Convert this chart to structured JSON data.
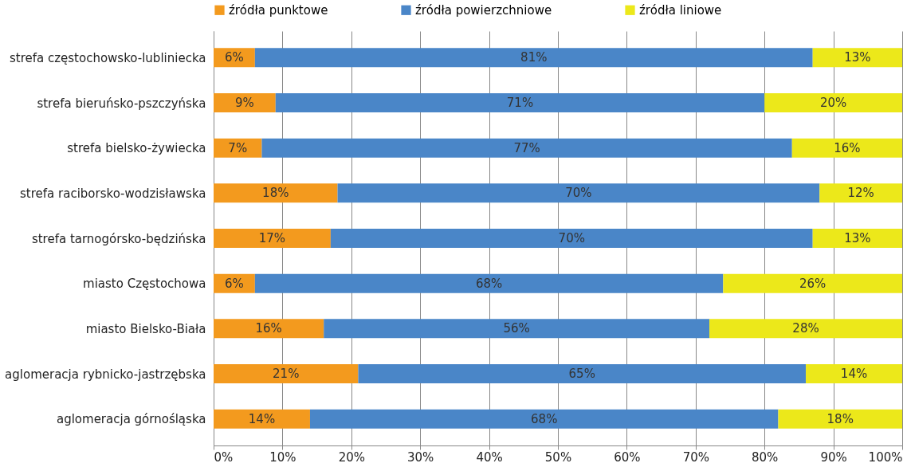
{
  "chart_data": {
    "type": "bar",
    "orientation": "horizontal",
    "stacked": true,
    "legend": "top",
    "grid": "x",
    "categories": [
      "strefa częstochowsko-lubliniecka",
      "strefa bieruńsko-pszczyńska",
      "strefa bielsko-żywiecka",
      "strefa raciborsko-wodzisławska",
      "strefa tarnogórsko-będzińska",
      "miasto Częstochowa",
      "miasto Bielsko-Biała",
      "aglomeracja rybnicko-jastrzębska",
      "aglomeracja górnośląska"
    ],
    "series": [
      {
        "name": "źródła punktowe",
        "color": "#f39a1e",
        "values": [
          6,
          9,
          7,
          18,
          17,
          6,
          16,
          21,
          14
        ],
        "value_labels": [
          "6%",
          "9%",
          "7%",
          "18%",
          "17%",
          "6%",
          "16%",
          "21%",
          "14%"
        ]
      },
      {
        "name": "źródła powierzchniowe",
        "color": "#4a86c8",
        "values": [
          81,
          71,
          77,
          70,
          70,
          68,
          56,
          65,
          68
        ],
        "value_labels": [
          "81%",
          "71%",
          "77%",
          "70%",
          "70%",
          "68%",
          "56%",
          "65%",
          "68%"
        ]
      },
      {
        "name": "źródła liniowe",
        "color": "#ece81a",
        "values": [
          13,
          20,
          16,
          12,
          13,
          26,
          28,
          14,
          18
        ],
        "value_labels": [
          "13%",
          "20%",
          "16%",
          "12%",
          "13%",
          "26%",
          "28%",
          "14%",
          "18%"
        ]
      }
    ],
    "xlim": [
      0,
      100
    ],
    "xticks": [
      {
        "value": 0,
        "label": "0%"
      },
      {
        "value": 10,
        "label": "10%"
      },
      {
        "value": 20,
        "label": "20%"
      },
      {
        "value": 30,
        "label": "30%"
      },
      {
        "value": 40,
        "label": "40%"
      },
      {
        "value": 50,
        "label": "50%"
      },
      {
        "value": 60,
        "label": "60%"
      },
      {
        "value": 70,
        "label": "70%"
      },
      {
        "value": 80,
        "label": "80%"
      },
      {
        "value": 90,
        "label": "90%"
      },
      {
        "value": 100,
        "label": "100%"
      }
    ]
  }
}
